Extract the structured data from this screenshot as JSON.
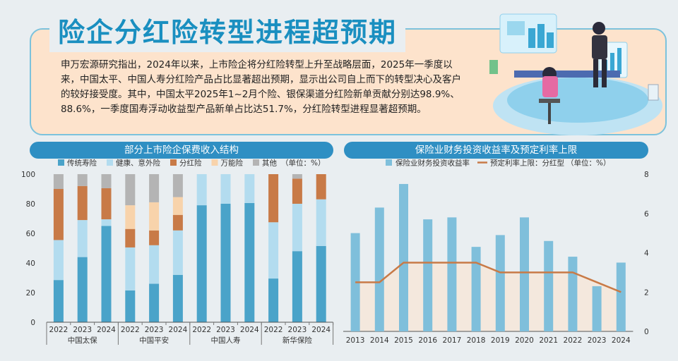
{
  "headline": "险企分红险转型进程超预期",
  "intro": "申万宏源研究指出，2024年以来，上市险企将分红险转型上升至战略层面，2025年一季度以来，中国太平、中国人寿分红险产品占比显著超出预期，显示出公司自上而下的转型决心及客户的较好接受度。其中，中国太平2025年1~2月个险、银保渠道分红险新单贡献分别达98.9%、88.6%，一季度国寿浮动收益型产品新单占比达51.7%，分红险转型进程显著超预期。",
  "colors": {
    "traditional": "#4aa3c9",
    "health": "#b3dcef",
    "dividend": "#c87a47",
    "universal": "#f8d3ab",
    "other": "#b4b4b4",
    "yield_bar": "#7fbfdb",
    "rate_line": "#c87a47",
    "title_bg": "#2f8fc3"
  },
  "chart_data": [
    {
      "type": "bar",
      "stacked": true,
      "title": "部分上市险企保费收入结构",
      "legend_position": "top",
      "unit_note": "（单位：%）",
      "ylim": [
        0,
        100
      ],
      "yticks": [
        "0",
        "20",
        "40",
        "60",
        "80",
        "100"
      ],
      "categories": [
        "2022",
        "2023",
        "2024",
        "2022",
        "2023",
        "2024",
        "2022",
        "2023",
        "2024",
        "2022",
        "2023",
        "2024"
      ],
      "groups": [
        {
          "name": "中国太保",
          "years": [
            "2022",
            "2023",
            "2024"
          ]
        },
        {
          "name": "中国平安",
          "years": [
            "2022",
            "2023",
            "2024"
          ]
        },
        {
          "name": "中国人寿",
          "years": [
            "2022",
            "2023",
            "2024"
          ]
        },
        {
          "name": "新华保险",
          "years": [
            "2022",
            "2023",
            "2024"
          ]
        }
      ],
      "series": [
        {
          "name": "传统寿险",
          "color_key": "traditional",
          "values": [
            28.5,
            44,
            65,
            21.5,
            26,
            32,
            79,
            80,
            80.5,
            29.5,
            48,
            51.5
          ]
        },
        {
          "name": "健康、意外险",
          "color_key": "health",
          "values": [
            27,
            25,
            4.5,
            29,
            26,
            30,
            21,
            20,
            19.5,
            38,
            32,
            31.5
          ]
        },
        {
          "name": "分红险",
          "color_key": "dividend",
          "values": [
            34.5,
            23,
            21,
            12.5,
            10,
            10.5,
            0,
            0,
            0,
            32.5,
            17,
            17
          ]
        },
        {
          "name": "万能险",
          "color_key": "universal",
          "values": [
            0,
            0,
            0,
            16,
            19,
            12,
            0,
            0,
            0,
            0,
            0,
            0
          ]
        },
        {
          "name": "其他",
          "color_key": "other",
          "values": [
            10,
            8,
            9.5,
            21,
            19,
            15.5,
            0,
            0,
            0,
            0,
            3,
            0
          ]
        }
      ]
    },
    {
      "type": "bar+line",
      "title": "保险业财务投资收益率及预定利率上限",
      "legend_position": "top",
      "unit_note": "（单位：%）",
      "x": [
        "2013",
        "2014",
        "2015",
        "2016",
        "2017",
        "2018",
        "2019",
        "2020",
        "2021",
        "2022",
        "2023",
        "2024"
      ],
      "ylim": [
        0,
        8
      ],
      "yticks": [
        "0",
        "2",
        "4",
        "6",
        "8"
      ],
      "series": [
        {
          "name": "保险业财务投资收益率",
          "type": "bar",
          "color_key": "yield_bar",
          "values": [
            5.0,
            6.3,
            7.5,
            5.7,
            5.8,
            4.3,
            4.9,
            5.8,
            4.6,
            3.8,
            2.3,
            3.5
          ]
        },
        {
          "name": "预定利率上限：分红型",
          "type": "line",
          "color_key": "rate_line",
          "values": [
            2.5,
            2.5,
            3.5,
            3.5,
            3.5,
            3.5,
            3.0,
            3.0,
            3.0,
            3.0,
            2.5,
            2.0
          ]
        }
      ]
    }
  ]
}
